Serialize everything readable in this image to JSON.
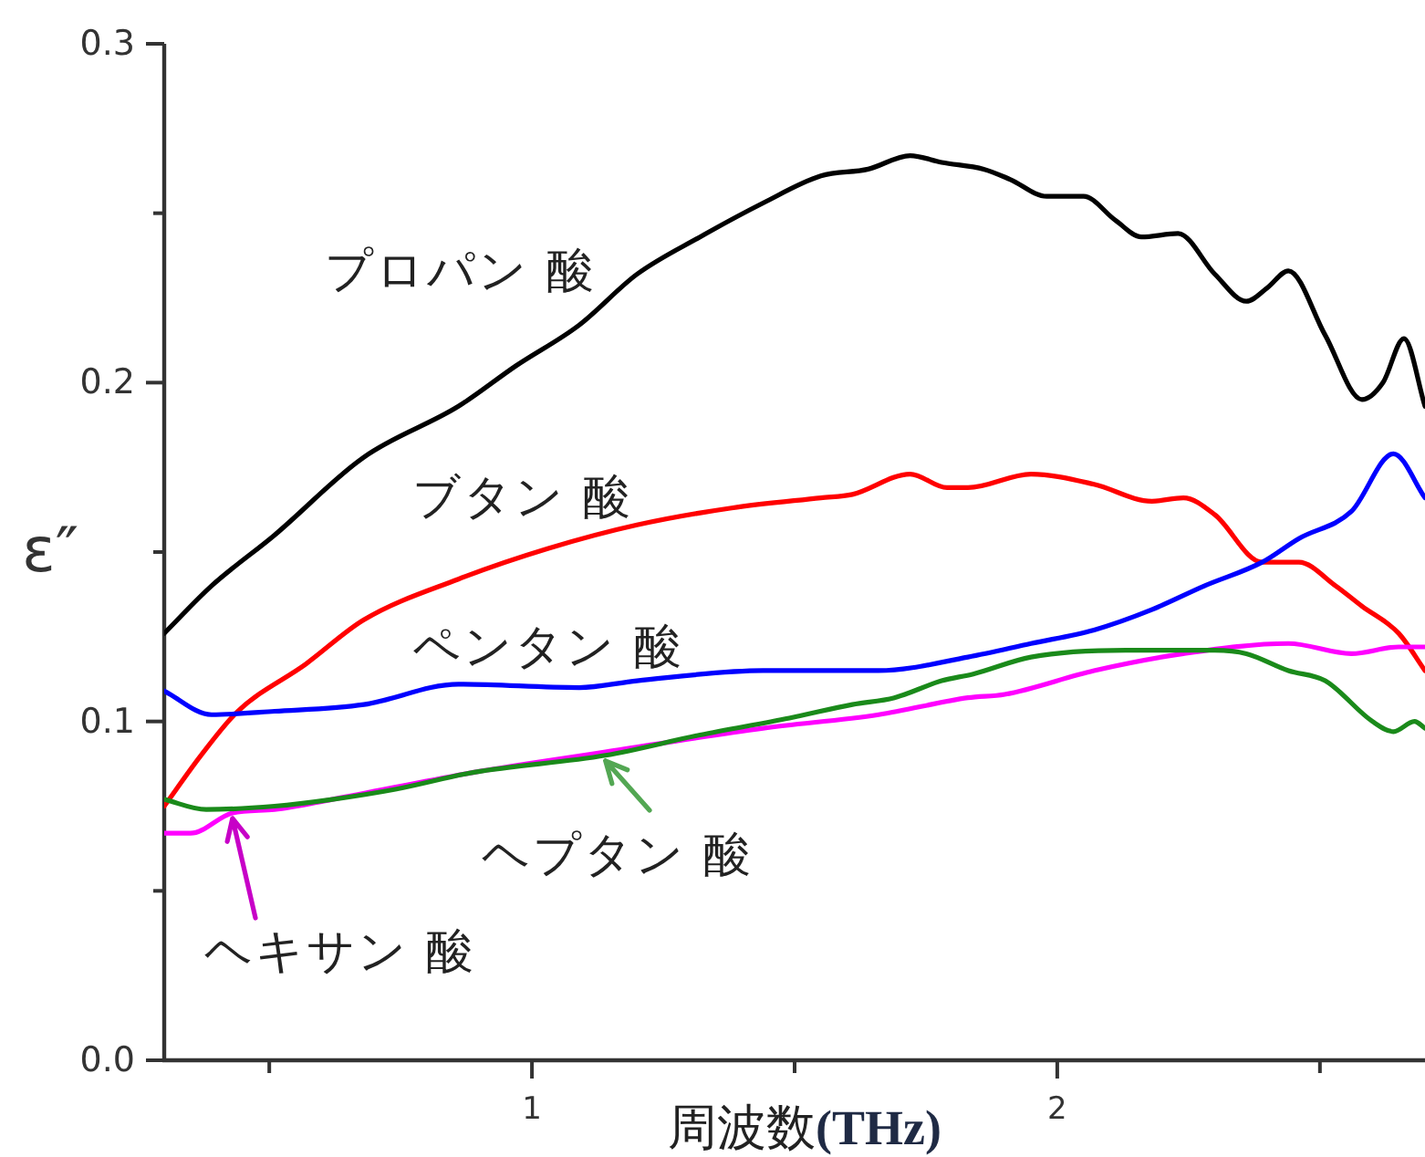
{
  "chart_data": {
    "type": "line",
    "xlabel": "周波数(THz)",
    "ylabel": "ε″",
    "xlim": [
      0.3,
      2.7
    ],
    "ylim": [
      0,
      0.3
    ],
    "xticks": [
      {
        "value": 0.5,
        "label": null
      },
      1,
      {
        "value": 1.5,
        "label": null
      },
      2,
      {
        "value": 2.5,
        "label": null
      }
    ],
    "yticks": [
      {
        "value": 0,
        "label": "0.0"
      },
      {
        "value": 0.05,
        "label": null
      },
      0.1,
      {
        "value": 0.15,
        "label": null
      },
      0.2,
      {
        "value": 0.25,
        "label": null
      },
      0.3
    ],
    "line_style": "solid",
    "series": [
      {
        "name": "プロパン 酸",
        "color": "#000000",
        "x": [
          0.3,
          0.39,
          0.51,
          0.68,
          0.86,
          0.97,
          1.09,
          1.2,
          1.32,
          1.44,
          1.55,
          1.64,
          1.72,
          1.78,
          1.86,
          1.91,
          1.98,
          2.05,
          2.11,
          2.16,
          2.23,
          2.3,
          2.36,
          2.4,
          2.44,
          2.51,
          2.58,
          2.62,
          2.66,
          2.7
        ],
        "values": [
          0.126,
          0.14,
          0.155,
          0.178,
          0.193,
          0.205,
          0.217,
          0.232,
          0.243,
          0.253,
          0.261,
          0.263,
          0.267,
          0.265,
          0.263,
          0.26,
          0.255,
          0.255,
          0.248,
          0.243,
          0.244,
          0.232,
          0.224,
          0.228,
          0.233,
          0.214,
          0.195,
          0.2,
          0.213,
          0.193
        ]
      },
      {
        "name": "ブタン 酸",
        "color": "#ff0000",
        "x": [
          0.3,
          0.37,
          0.44,
          0.57,
          0.68,
          0.86,
          1.03,
          1.2,
          1.38,
          1.55,
          1.61,
          1.72,
          1.79,
          1.83,
          1.95,
          2.07,
          2.18,
          2.24,
          2.3,
          2.39,
          2.46,
          2.53,
          2.58,
          2.65,
          2.7
        ],
        "values": [
          0.075,
          0.09,
          0.103,
          0.117,
          0.13,
          0.142,
          0.151,
          0.158,
          0.163,
          0.166,
          0.167,
          0.173,
          0.169,
          0.169,
          0.173,
          0.17,
          0.165,
          0.166,
          0.161,
          0.147,
          0.147,
          0.14,
          0.134,
          0.126,
          0.115
        ]
      },
      {
        "name": "ペンタン 酸",
        "color": "#0000ff",
        "x": [
          0.3,
          0.39,
          0.51,
          0.68,
          0.86,
          1.09,
          1.2,
          1.44,
          1.66,
          1.83,
          1.95,
          2.07,
          2.18,
          2.28,
          2.39,
          2.46,
          2.56,
          2.64,
          2.7
        ],
        "values": [
          0.109,
          0.102,
          0.103,
          0.105,
          0.111,
          0.11,
          0.112,
          0.115,
          0.115,
          0.119,
          0.123,
          0.127,
          0.133,
          0.14,
          0.147,
          0.154,
          0.162,
          0.179,
          0.166
        ]
      },
      {
        "name": "ヘキサン 酸",
        "color": "#ff00ff",
        "x": [
          0.3,
          0.35,
          0.43,
          0.51,
          0.62,
          0.89,
          1.14,
          1.44,
          1.66,
          1.83,
          1.9,
          2.07,
          2.24,
          2.44,
          2.56,
          2.65,
          2.7
        ],
        "values": [
          0.067,
          0.067,
          0.073,
          0.074,
          0.077,
          0.085,
          0.091,
          0.098,
          0.102,
          0.107,
          0.108,
          0.115,
          0.12,
          0.123,
          0.12,
          0.122,
          0.122
        ]
      },
      {
        "name": "ヘプタン 酸",
        "color": "#1a8a1a",
        "x": [
          0.3,
          0.38,
          0.51,
          0.62,
          0.74,
          0.89,
          1.14,
          1.32,
          1.49,
          1.61,
          1.69,
          1.78,
          1.84,
          1.95,
          2.13,
          2.3,
          2.36,
          2.44,
          2.51,
          2.6,
          2.64,
          2.68,
          2.7
        ],
        "values": [
          0.077,
          0.074,
          0.075,
          0.077,
          0.08,
          0.085,
          0.09,
          0.096,
          0.101,
          0.105,
          0.107,
          0.112,
          0.114,
          0.119,
          0.121,
          0.121,
          0.12,
          0.115,
          0.112,
          0.1,
          0.097,
          0.1,
          0.098
        ]
      }
    ]
  }
}
